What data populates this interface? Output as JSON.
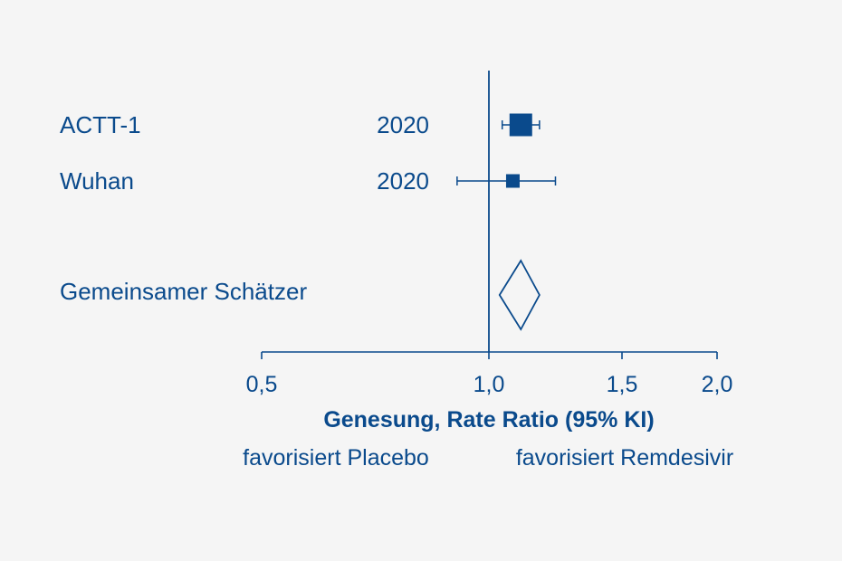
{
  "chart_data": {
    "type": "forest",
    "scale": "linear-on-axis-labels",
    "xlabel": "Genesung, Rate Ratio (95% KI)",
    "x_ticks": [
      {
        "value": 0.5,
        "label": "0,5"
      },
      {
        "value": 1.0,
        "label": "1,0"
      },
      {
        "value": 1.5,
        "label": "1,5"
      },
      {
        "value": 2.0,
        "label": "2,0"
      }
    ],
    "xlim": [
      0.5,
      2.0
    ],
    "reference_line": 1.0,
    "direction_labels": {
      "left": "favorisiert Placebo",
      "right": "favorisiert Remdesivir"
    },
    "studies": [
      {
        "name": "ACTT-1",
        "year": "2020",
        "estimate": 1.12,
        "ci_low": 1.05,
        "ci_high": 1.19,
        "weight": "large"
      },
      {
        "name": "Wuhan",
        "year": "2020",
        "estimate": 1.09,
        "ci_low": 0.93,
        "ci_high": 1.25,
        "weight": "small"
      }
    ],
    "pooled": {
      "name": "Gemeinsamer Schätzer",
      "estimate": 1.12,
      "ci_low": 1.04,
      "ci_high": 1.19
    },
    "colors": {
      "primary": "#0a4a8c",
      "background": "#f5f5f5"
    }
  }
}
